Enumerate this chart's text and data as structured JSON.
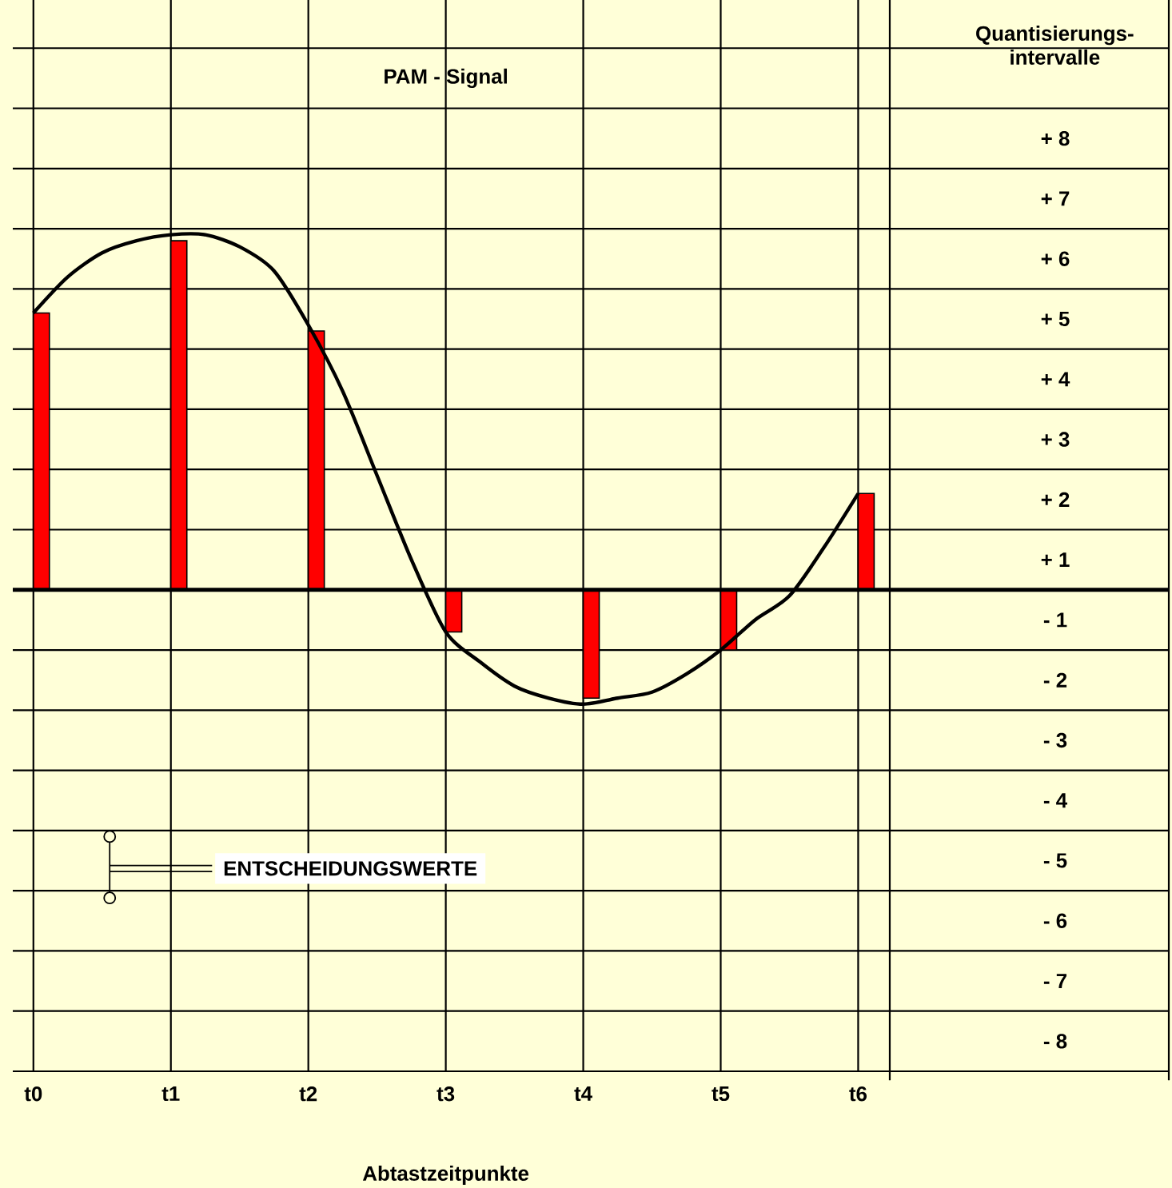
{
  "chart_data": {
    "type": "bar",
    "title": "PAM - Signal",
    "xlabel": "Abtastzeitpunkte",
    "ylabel": "Quantisierungs-intervalle",
    "categories": [
      "t0",
      null,
      null,
      null,
      "t1",
      null,
      null,
      null,
      "t2",
      null,
      null,
      null,
      "t3",
      null,
      null,
      null,
      "t4",
      null,
      null,
      null,
      "t5",
      null,
      null,
      null,
      "t6"
    ],
    "series": [
      {
        "color": "#ff0000",
        "values": [
          4.6,
          null,
          null,
          null,
          5.8,
          null,
          null,
          null,
          4.3,
          null,
          null,
          null,
          -0.7,
          null,
          null,
          null,
          -1.8,
          null,
          null,
          null,
          -1.0,
          null,
          null,
          null,
          1.6
        ]
      },
      {
        "type": "line",
        "color": "#000000",
        "values": [
          4.6,
          5.2,
          5.6,
          5.8,
          5.9,
          5.9,
          5.7,
          5.3,
          4.4,
          3.3,
          1.9,
          0.5,
          -0.7,
          -1.2,
          -1.6,
          -1.8,
          -1.9,
          -1.8,
          -1.7,
          -1.4,
          -1.0,
          -0.5,
          -0.1,
          0.7,
          1.6
        ]
      }
    ],
    "ylim": [
      -8,
      9.8
    ],
    "yticks": [
      {
        "value": 7.5,
        "label": "+ 8"
      },
      {
        "value": 6.5,
        "label": "+ 7"
      },
      {
        "value": 5.5,
        "label": "+ 6"
      },
      {
        "value": 4.5,
        "label": "+ 5"
      },
      {
        "value": 3.5,
        "label": "+ 4"
      },
      {
        "value": 2.5,
        "label": "+ 3"
      },
      {
        "value": 1.5,
        "label": "+ 2"
      },
      {
        "value": 0.5,
        "label": "+ 1"
      },
      {
        "value": -0.5,
        "label": "- 1"
      },
      {
        "value": -1.5,
        "label": "- 2"
      },
      {
        "value": -2.5,
        "label": "- 3"
      },
      {
        "value": -3.5,
        "label": "- 4"
      },
      {
        "value": -4.5,
        "label": "- 5"
      },
      {
        "value": -5.5,
        "label": "- 6"
      },
      {
        "value": -6.5,
        "label": "- 7"
      },
      {
        "value": -7.5,
        "label": "- 8"
      },
      {
        "value": 9,
        "label": null
      },
      {
        "value": 8,
        "label": null
      },
      {
        "value": 7,
        "label": null
      },
      {
        "value": 6,
        "label": null
      },
      {
        "value": 5,
        "label": null
      },
      {
        "value": 4,
        "label": null
      },
      {
        "value": 3,
        "label": null
      },
      {
        "value": 2,
        "label": null
      },
      {
        "value": 1,
        "label": null
      },
      {
        "value": 0,
        "label": null
      },
      {
        "value": -1,
        "label": null
      },
      {
        "value": -2,
        "label": null
      },
      {
        "value": -3,
        "label": null
      },
      {
        "value": -4,
        "label": null
      },
      {
        "value": -5,
        "label": null
      },
      {
        "value": -6,
        "label": null
      },
      {
        "value": -7,
        "label": null
      },
      {
        "value": -8,
        "label": null
      }
    ],
    "grid": true,
    "annotations": [
      "ENTSCHEIDUNGSWERTE"
    ]
  }
}
